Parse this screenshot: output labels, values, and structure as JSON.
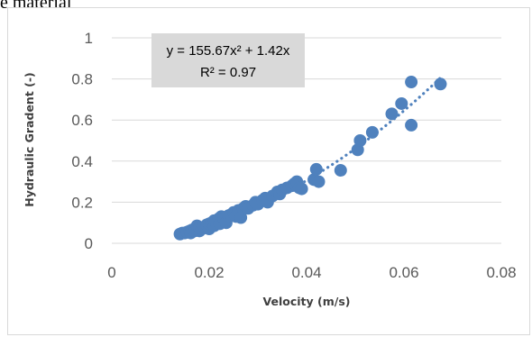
{
  "page": {
    "header_fragment": "e material"
  },
  "chart_data": {
    "type": "scatter",
    "title": "",
    "xlabel": "Velocity (m/s)",
    "ylabel": "Hydraulic Gradent (-)",
    "xlim": [
      0,
      0.08
    ],
    "ylim": [
      0,
      1
    ],
    "x_ticks": [
      "0",
      "0.02",
      "0.04",
      "0.06",
      "0.08"
    ],
    "y_ticks": [
      "0",
      "0.2",
      "0.4",
      "0.6",
      "0.8",
      "1"
    ],
    "grid": "horizontal",
    "legend": "none",
    "marker_color": "#4f81bd",
    "trendline": {
      "type": "polynomial",
      "style": "dotted",
      "color": "#4f81bd",
      "a": 155.67,
      "b": 1.42,
      "x_range": [
        0.0135,
        0.068
      ],
      "equation": "y = 155.67x² + 1.42x",
      "r2": "R² = 0.97"
    },
    "series": [
      {
        "points": [
          [
            0.014,
            0.045
          ],
          [
            0.0145,
            0.05
          ],
          [
            0.015,
            0.05
          ],
          [
            0.0155,
            0.055
          ],
          [
            0.016,
            0.06
          ],
          [
            0.0162,
            0.05
          ],
          [
            0.0165,
            0.065
          ],
          [
            0.017,
            0.06
          ],
          [
            0.0172,
            0.07
          ],
          [
            0.0175,
            0.085
          ],
          [
            0.018,
            0.06
          ],
          [
            0.018,
            0.075
          ],
          [
            0.0185,
            0.07
          ],
          [
            0.019,
            0.08
          ],
          [
            0.0195,
            0.09
          ],
          [
            0.02,
            0.07
          ],
          [
            0.02,
            0.095
          ],
          [
            0.0205,
            0.1
          ],
          [
            0.021,
            0.085
          ],
          [
            0.021,
            0.11
          ],
          [
            0.0215,
            0.1
          ],
          [
            0.022,
            0.12
          ],
          [
            0.0222,
            0.095
          ],
          [
            0.0225,
            0.13
          ],
          [
            0.023,
            0.12
          ],
          [
            0.0235,
            0.1
          ],
          [
            0.024,
            0.135
          ],
          [
            0.0245,
            0.14
          ],
          [
            0.025,
            0.15
          ],
          [
            0.0255,
            0.13
          ],
          [
            0.026,
            0.16
          ],
          [
            0.0265,
            0.125
          ],
          [
            0.027,
            0.17
          ],
          [
            0.0275,
            0.18
          ],
          [
            0.028,
            0.17
          ],
          [
            0.029,
            0.185
          ],
          [
            0.0295,
            0.2
          ],
          [
            0.03,
            0.19
          ],
          [
            0.031,
            0.21
          ],
          [
            0.0315,
            0.22
          ],
          [
            0.032,
            0.2
          ],
          [
            0.033,
            0.23
          ],
          [
            0.034,
            0.25
          ],
          [
            0.0345,
            0.24
          ],
          [
            0.035,
            0.26
          ],
          [
            0.036,
            0.27
          ],
          [
            0.037,
            0.28
          ],
          [
            0.0375,
            0.29
          ],
          [
            0.038,
            0.3
          ],
          [
            0.0385,
            0.27
          ],
          [
            0.039,
            0.265
          ],
          [
            0.0415,
            0.31
          ],
          [
            0.042,
            0.36
          ],
          [
            0.0425,
            0.3
          ],
          [
            0.047,
            0.355
          ],
          [
            0.0505,
            0.455
          ],
          [
            0.051,
            0.5
          ],
          [
            0.0535,
            0.54
          ],
          [
            0.0575,
            0.63
          ],
          [
            0.0595,
            0.68
          ],
          [
            0.0615,
            0.785
          ],
          [
            0.0615,
            0.575
          ],
          [
            0.0675,
            0.775
          ]
        ]
      }
    ]
  }
}
